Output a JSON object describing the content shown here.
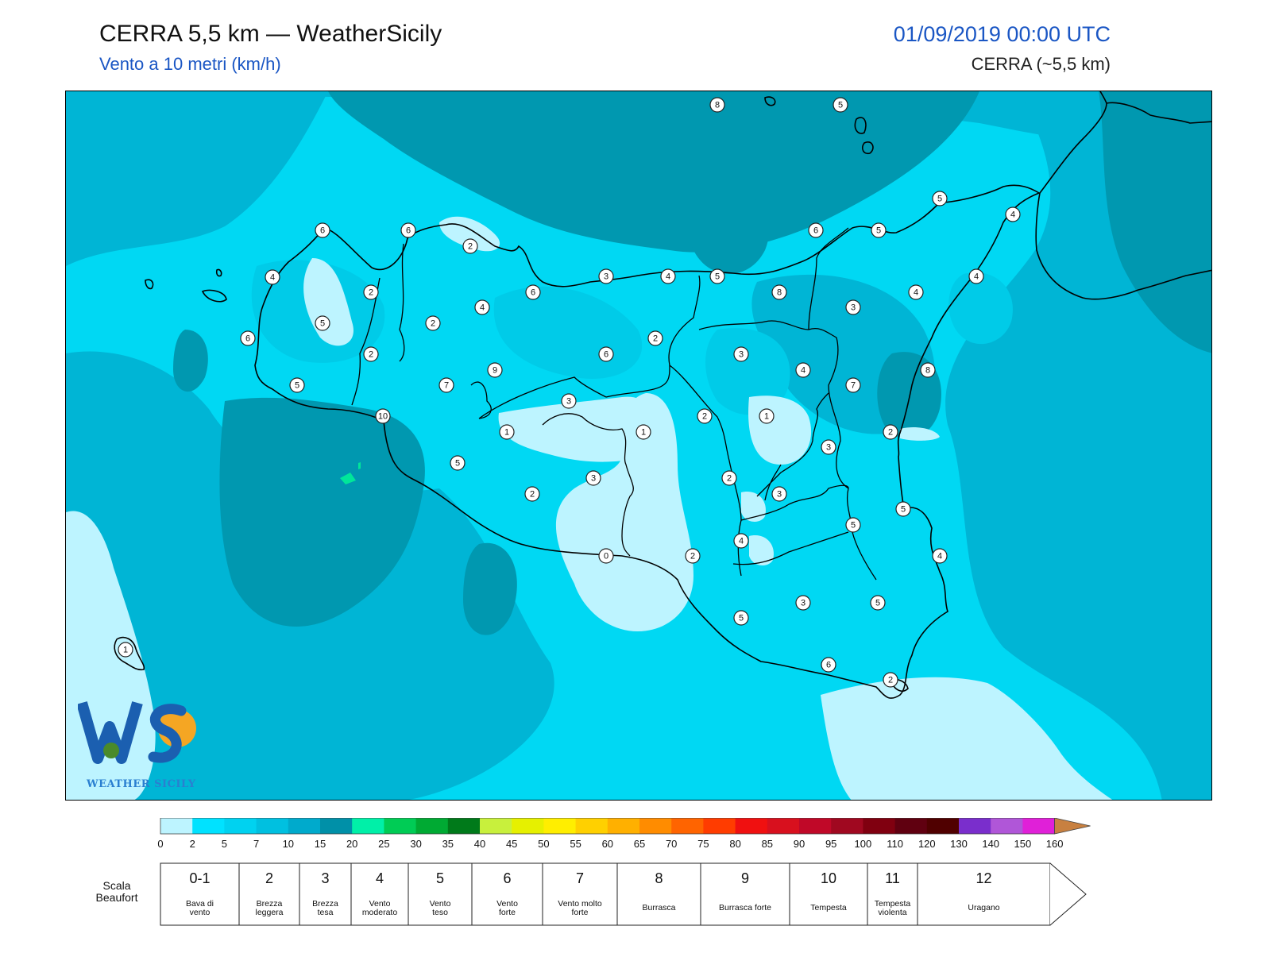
{
  "header": {
    "title": "CERRA 5,5 km — WeatherSicily",
    "subtitle": "Vento a 10 metri (km/h)",
    "datetime": "01/09/2019 00:00 UTC",
    "model": "CERRA (~5,5 km)"
  },
  "logo": {
    "text": "WEATHER SICILY",
    "initials": "WS"
  },
  "colors": {
    "base": "#00d8f3",
    "calm": "#bdf4ff",
    "light": "#00cbe8",
    "medium": "#00b5d5",
    "strong": "#0098b0",
    "green": "#00e69a",
    "coast": "#000000"
  },
  "stations": [
    {
      "value": "8"
    },
    {
      "value": "5"
    },
    {
      "value": "5"
    },
    {
      "value": "4"
    },
    {
      "value": "6"
    },
    {
      "value": "6"
    },
    {
      "value": "6"
    },
    {
      "value": "5"
    },
    {
      "value": "4"
    },
    {
      "value": "2"
    },
    {
      "value": "3"
    },
    {
      "value": "4"
    },
    {
      "value": "5"
    },
    {
      "value": "4"
    },
    {
      "value": "2"
    },
    {
      "value": "4"
    },
    {
      "value": "6"
    },
    {
      "value": "8"
    },
    {
      "value": "3"
    },
    {
      "value": "4"
    },
    {
      "value": "5"
    },
    {
      "value": "2"
    },
    {
      "value": "6"
    },
    {
      "value": "2"
    },
    {
      "value": "6"
    },
    {
      "value": "3"
    },
    {
      "value": "4"
    },
    {
      "value": "8"
    },
    {
      "value": "2"
    },
    {
      "value": "9"
    },
    {
      "value": "7"
    },
    {
      "value": "5"
    },
    {
      "value": "7"
    },
    {
      "value": "3"
    },
    {
      "value": "2"
    },
    {
      "value": "1"
    },
    {
      "value": "10"
    },
    {
      "value": "1"
    },
    {
      "value": "1"
    },
    {
      "value": "2"
    },
    {
      "value": "3"
    },
    {
      "value": "5"
    },
    {
      "value": "3"
    },
    {
      "value": "2"
    },
    {
      "value": "2"
    },
    {
      "value": "3"
    },
    {
      "value": "5"
    },
    {
      "value": "5"
    },
    {
      "value": "4"
    },
    {
      "value": "0"
    },
    {
      "value": "2"
    },
    {
      "value": "4"
    },
    {
      "value": "3"
    },
    {
      "value": "5"
    },
    {
      "value": "5"
    },
    {
      "value": "6"
    },
    {
      "value": "2"
    },
    {
      "value": "1"
    }
  ],
  "legend": {
    "ticks": [
      "0",
      "2",
      "5",
      "7",
      "10",
      "15",
      "20",
      "25",
      "30",
      "35",
      "40",
      "45",
      "50",
      "55",
      "60",
      "65",
      "70",
      "75",
      "80",
      "85",
      "90",
      "95",
      "100",
      "110",
      "120",
      "130",
      "140",
      "150",
      "160"
    ],
    "colors": [
      "#bdf4ff",
      "#00e2ff",
      "#00d2f0",
      "#00c0e0",
      "#00aacc",
      "#0090a8",
      "#00f0a8",
      "#00cc55",
      "#00aa33",
      "#007a1a",
      "#c8f03c",
      "#e6f000",
      "#ffee00",
      "#ffd000",
      "#ffb000",
      "#ff8c00",
      "#ff6400",
      "#ff3c00",
      "#f01010",
      "#d8101e",
      "#c00828",
      "#a00820",
      "#800010",
      "#600010",
      "#500000",
      "#7a2ecc",
      "#b056d8",
      "#e020d8",
      "#808080",
      "#5a5a5a",
      "#000000",
      "#8a4a2a",
      "#c88040"
    ],
    "scale_title": "Scala Beaufort",
    "beaufort": [
      {
        "num": "0-1",
        "label": "Bava di vento"
      },
      {
        "num": "2",
        "label": "Brezza leggera"
      },
      {
        "num": "3",
        "label": "Brezza tesa"
      },
      {
        "num": "4",
        "label": "Vento moderato"
      },
      {
        "num": "5",
        "label": "Vento teso"
      },
      {
        "num": "6",
        "label": "Vento forte"
      },
      {
        "num": "7",
        "label": "Vento molto forte"
      },
      {
        "num": "8",
        "label": "Burrasca"
      },
      {
        "num": "9",
        "label": "Burrasca forte"
      },
      {
        "num": "10",
        "label": "Tempesta"
      },
      {
        "num": "11",
        "label": "Tempesta violenta"
      },
      {
        "num": "12",
        "label": "Uragano"
      }
    ]
  }
}
